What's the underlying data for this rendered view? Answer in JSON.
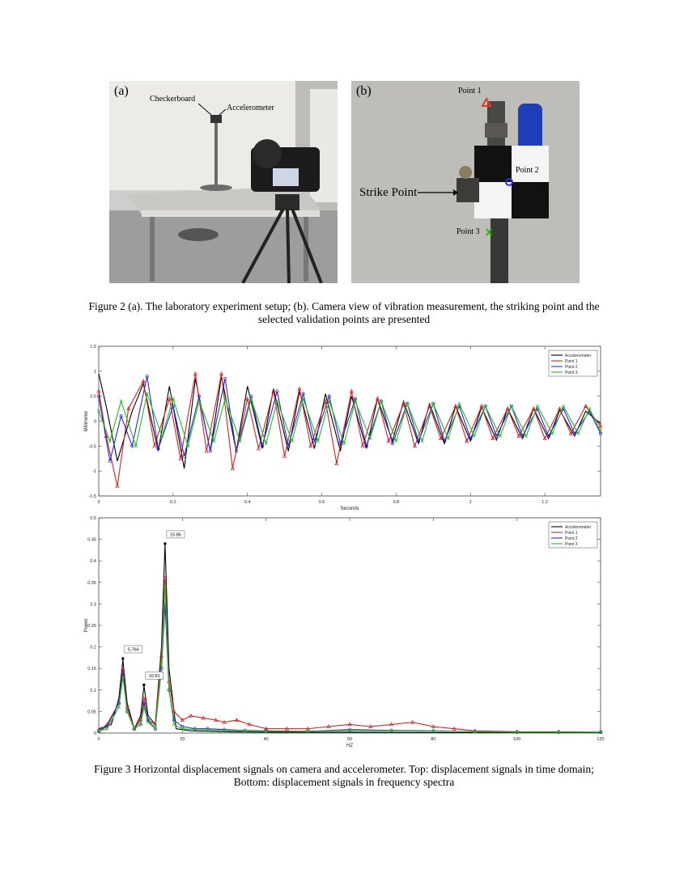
{
  "figure2": {
    "panel_a": {
      "label": "(a)",
      "annotations": {
        "checkerboard": "Checkerboard",
        "accelerometer": "Accelerometer"
      }
    },
    "panel_b": {
      "label": "(b)",
      "annotations": {
        "point1": "Point 1",
        "point2": "Point 2",
        "point3": "Point 3",
        "strike_point": "Strike Point"
      },
      "marker_colors": {
        "point1": "#e53a1f",
        "point2": "#2233dd",
        "point3": "#22bb22"
      }
    },
    "caption_line1": "Figure 2 (a). The laboratory experiment setup; (b). Camera view of vibration measurement, the striking point and the",
    "caption_line2": "selected validation points are presented"
  },
  "figure3": {
    "caption_line1": "Figure 3 Horizontal displacement signals on camera and accelerometer. Top: displacement signals in time domain;",
    "caption_line2": "Bottom: displacement signals in frequency spectra"
  },
  "chart_data": [
    {
      "type": "line",
      "xlabel": "Seconds",
      "ylabel": "Millimeter",
      "xlim": [
        0,
        1.35
      ],
      "ylim": [
        -1.5,
        1.5
      ],
      "xticks": [
        0,
        0.2,
        0.4,
        0.6,
        0.8,
        1,
        1.2
      ],
      "yticks": [
        -1.5,
        -1,
        -0.5,
        0,
        0.5,
        1,
        1.5
      ],
      "grid": false,
      "legend_position": "top-right",
      "series": [
        {
          "name": "Accelerometer",
          "color": "#000000",
          "marker": "none",
          "x": [
            0,
            0.02,
            0.05,
            0.09,
            0.12,
            0.16,
            0.19,
            0.23,
            0.26,
            0.3,
            0.33,
            0.37,
            0.4,
            0.44,
            0.47,
            0.51,
            0.54,
            0.58,
            0.61,
            0.65,
            0.68,
            0.72,
            0.75,
            0.79,
            0.82,
            0.86,
            0.89,
            0.93,
            0.96,
            1.0,
            1.03,
            1.07,
            1.1,
            1.14,
            1.17,
            1.21,
            1.24,
            1.28,
            1.31,
            1.35
          ],
          "y": [
            0.95,
            0.3,
            -0.8,
            0.2,
            0.75,
            -0.6,
            0.7,
            -0.95,
            0.85,
            -0.6,
            0.9,
            -0.6,
            0.7,
            -0.55,
            0.65,
            -0.6,
            0.6,
            -0.55,
            0.55,
            -0.6,
            0.5,
            -0.55,
            0.45,
            -0.4,
            0.4,
            -0.45,
            0.35,
            -0.45,
            0.3,
            -0.4,
            0.28,
            -0.38,
            0.25,
            -0.35,
            0.25,
            -0.35,
            0.22,
            -0.3,
            0.2,
            -0.05
          ]
        },
        {
          "name": "Point 1",
          "color": "#d42020",
          "marker": "triangle",
          "x": [
            0,
            0.02,
            0.05,
            0.08,
            0.12,
            0.15,
            0.19,
            0.22,
            0.26,
            0.29,
            0.33,
            0.36,
            0.4,
            0.43,
            0.47,
            0.5,
            0.54,
            0.57,
            0.61,
            0.64,
            0.68,
            0.71,
            0.75,
            0.78,
            0.82,
            0.85,
            0.89,
            0.92,
            0.96,
            0.99,
            1.03,
            1.06,
            1.1,
            1.13,
            1.17,
            1.2,
            1.24,
            1.27,
            1.31,
            1.35
          ],
          "y": [
            0.6,
            -0.3,
            -1.3,
            0.25,
            0.8,
            -0.5,
            0.45,
            -0.75,
            0.95,
            -0.6,
            0.95,
            -0.95,
            0.45,
            -0.55,
            0.6,
            -0.7,
            0.65,
            -0.5,
            0.4,
            -0.85,
            0.6,
            -0.5,
            0.45,
            -0.4,
            0.35,
            -0.5,
            0.3,
            -0.35,
            0.3,
            -0.4,
            0.3,
            -0.35,
            0.25,
            -0.3,
            0.25,
            -0.35,
            0.25,
            -0.25,
            0.3,
            -0.1
          ]
        },
        {
          "name": "Point 2",
          "color": "#2a2ad0",
          "marker": "circle",
          "x": [
            0,
            0.03,
            0.06,
            0.09,
            0.13,
            0.16,
            0.2,
            0.23,
            0.27,
            0.3,
            0.34,
            0.37,
            0.41,
            0.44,
            0.48,
            0.51,
            0.55,
            0.58,
            0.62,
            0.65,
            0.69,
            0.72,
            0.76,
            0.79,
            0.83,
            0.86,
            0.9,
            0.93,
            0.97,
            1.0,
            1.04,
            1.07,
            1.11,
            1.14,
            1.18,
            1.21,
            1.25,
            1.28,
            1.32,
            1.35
          ],
          "y": [
            0.5,
            -0.8,
            0.1,
            -0.5,
            0.9,
            -0.55,
            0.3,
            -0.7,
            0.5,
            -0.6,
            0.85,
            -0.6,
            0.5,
            -0.5,
            0.6,
            -0.5,
            0.55,
            -0.4,
            0.5,
            -0.45,
            0.45,
            -0.5,
            0.4,
            -0.45,
            0.35,
            -0.4,
            0.35,
            -0.4,
            0.3,
            -0.35,
            0.3,
            -0.3,
            0.3,
            -0.3,
            0.25,
            -0.3,
            0.25,
            -0.25,
            0.2,
            -0.25
          ]
        },
        {
          "name": "Point 3",
          "color": "#20c020",
          "marker": "x",
          "x": [
            0,
            0.03,
            0.06,
            0.1,
            0.13,
            0.17,
            0.2,
            0.24,
            0.27,
            0.31,
            0.34,
            0.38,
            0.41,
            0.45,
            0.48,
            0.52,
            0.55,
            0.59,
            0.62,
            0.66,
            0.69,
            0.73,
            0.76,
            0.8,
            0.83,
            0.87,
            0.9,
            0.94,
            0.97,
            1.01,
            1.04,
            1.08,
            1.11,
            1.15,
            1.18,
            1.22,
            1.25,
            1.29,
            1.32,
            1.35
          ],
          "y": [
            0.2,
            -0.4,
            0.4,
            -0.5,
            0.55,
            -0.3,
            0.45,
            -0.5,
            0.4,
            -0.4,
            0.45,
            -0.4,
            0.45,
            -0.45,
            0.4,
            -0.4,
            0.45,
            -0.4,
            0.4,
            -0.45,
            0.4,
            -0.35,
            0.4,
            -0.4,
            0.35,
            -0.4,
            0.35,
            -0.35,
            0.35,
            -0.3,
            0.3,
            -0.3,
            0.3,
            -0.3,
            0.3,
            -0.25,
            0.3,
            -0.25,
            0.25,
            -0.2
          ]
        }
      ]
    },
    {
      "type": "line",
      "xlabel": "HZ",
      "ylabel": "Power",
      "xlim": [
        0,
        120
      ],
      "ylim": [
        0,
        0.5
      ],
      "xticks": [
        0,
        20,
        40,
        60,
        80,
        100,
        120
      ],
      "yticks": [
        0,
        0.05,
        0.1,
        0.15,
        0.2,
        0.25,
        0.3,
        0.35,
        0.4,
        0.45,
        0.5
      ],
      "grid": false,
      "legend_position": "top-right",
      "annotations": [
        {
          "label": "5.766",
          "x": 5.766,
          "y": 0.173
        },
        {
          "label": "10.81",
          "x": 10.81,
          "y": 0.112
        },
        {
          "label": "15.86",
          "x": 15.86,
          "y": 0.44
        }
      ],
      "series": [
        {
          "name": "Accelerometer",
          "color": "#000000",
          "marker": "none",
          "x": [
            0,
            3,
            4.8,
            5.77,
            6.8,
            8.5,
            10,
            10.81,
            11.8,
            13.5,
            15,
            15.86,
            16.8,
            18.5,
            22,
            30,
            40,
            60,
            80,
            100,
            120
          ],
          "y": [
            0.01,
            0.02,
            0.08,
            0.17,
            0.07,
            0.01,
            0.04,
            0.11,
            0.04,
            0.02,
            0.2,
            0.44,
            0.15,
            0.01,
            0.005,
            0.003,
            0.002,
            0.002,
            0.001,
            0.001,
            0.001
          ]
        },
        {
          "name": "Point 1",
          "color": "#d42020",
          "marker": "triangle",
          "x": [
            0,
            2,
            4.8,
            5.77,
            6.8,
            8.5,
            10,
            10.81,
            11.8,
            13.5,
            15,
            15.86,
            16.8,
            18,
            20,
            22,
            25,
            28,
            30,
            33,
            36,
            40,
            45,
            50,
            55,
            60,
            65,
            70,
            75,
            80,
            85,
            90,
            100,
            110,
            120
          ],
          "y": [
            0.005,
            0.02,
            0.07,
            0.15,
            0.06,
            0.01,
            0.03,
            0.08,
            0.03,
            0.02,
            0.18,
            0.36,
            0.12,
            0.05,
            0.03,
            0.04,
            0.035,
            0.03,
            0.025,
            0.03,
            0.02,
            0.01,
            0.01,
            0.01,
            0.015,
            0.02,
            0.015,
            0.02,
            0.025,
            0.015,
            0.01,
            0.005,
            0.003,
            0.003,
            0.002
          ]
        },
        {
          "name": "Point 2",
          "color": "#2a2ad0",
          "marker": "circle",
          "x": [
            0,
            2,
            4.8,
            5.77,
            6.8,
            8.5,
            10,
            10.81,
            11.8,
            13.5,
            15,
            15.86,
            16.8,
            18,
            20,
            23,
            26,
            30,
            35,
            40,
            50,
            60,
            70,
            80,
            90,
            100,
            110,
            120
          ],
          "y": [
            0.005,
            0.015,
            0.07,
            0.14,
            0.05,
            0.01,
            0.02,
            0.07,
            0.03,
            0.01,
            0.15,
            0.3,
            0.1,
            0.03,
            0.015,
            0.01,
            0.01,
            0.008,
            0.006,
            0.005,
            0.004,
            0.008,
            0.006,
            0.005,
            0.003,
            0.002,
            0.002,
            0.002
          ]
        },
        {
          "name": "Point 3",
          "color": "#20c020",
          "marker": "x",
          "x": [
            0,
            2,
            4.8,
            5.77,
            6.8,
            8.5,
            10,
            10.81,
            11.8,
            13.5,
            15,
            15.86,
            16.8,
            18,
            20,
            23,
            26,
            30,
            35,
            40,
            50,
            60,
            70,
            80,
            90,
            100,
            110,
            120
          ],
          "y": [
            0.005,
            0.01,
            0.06,
            0.13,
            0.05,
            0.01,
            0.02,
            0.06,
            0.025,
            0.01,
            0.16,
            0.34,
            0.1,
            0.02,
            0.01,
            0.008,
            0.007,
            0.006,
            0.005,
            0.004,
            0.004,
            0.006,
            0.005,
            0.004,
            0.003,
            0.002,
            0.002,
            0.002
          ]
        }
      ]
    }
  ]
}
